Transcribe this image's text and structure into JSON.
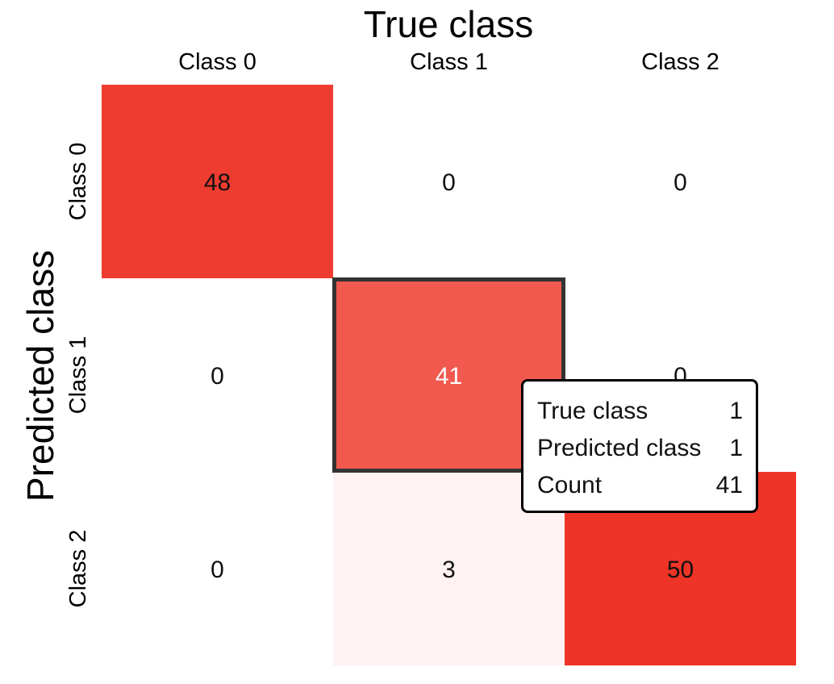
{
  "chart_data": {
    "type": "heatmap",
    "title": "True class",
    "xlabel": "True class",
    "ylabel": "Predicted class",
    "x_categories": [
      "Class 0",
      "Class 1",
      "Class 2"
    ],
    "y_categories": [
      "Class 0",
      "Class 1",
      "Class 2"
    ],
    "values": [
      [
        48,
        0,
        0
      ],
      [
        0,
        41,
        0
      ],
      [
        0,
        3,
        50
      ]
    ],
    "color_min": 0,
    "color_max": 50,
    "color_low": "#ffffff",
    "color_high": "#ee3427",
    "highlighted_cell": {
      "row": 1,
      "col": 1
    },
    "legend": "none",
    "grid": false
  },
  "tooltip": {
    "rows": [
      {
        "label": "True class",
        "value": "1"
      },
      {
        "label": "Predicted class",
        "value": "1"
      },
      {
        "label": "Count",
        "value": "41"
      }
    ]
  }
}
